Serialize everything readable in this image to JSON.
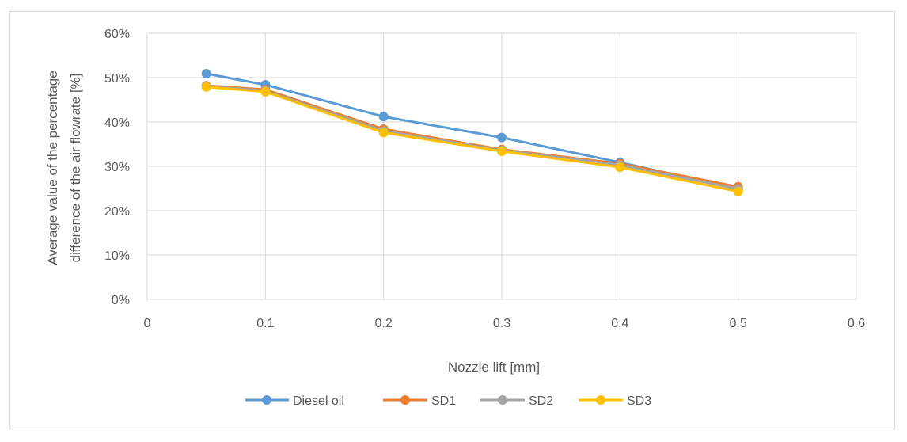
{
  "chart_data": {
    "type": "line",
    "title": "",
    "xlabel": "Nozzle lift [mm]",
    "ylabel_lines": [
      "Average value of the percentage",
      "difference of the air flowrate [%]"
    ],
    "xlim": [
      0,
      0.6
    ],
    "ylim": [
      0,
      0.6
    ],
    "x_ticks": [
      0,
      0.1,
      0.2,
      0.3,
      0.4,
      0.5,
      0.6
    ],
    "x_tick_labels": [
      "0",
      "0.1",
      "0.2",
      "0.3",
      "0.4",
      "0.5",
      "0.6"
    ],
    "y_ticks": [
      0,
      0.1,
      0.2,
      0.3,
      0.4,
      0.5,
      0.6
    ],
    "y_tick_labels": [
      "0%",
      "10%",
      "20%",
      "30%",
      "40%",
      "50%",
      "60%"
    ],
    "grid": true,
    "legend_position": "bottom",
    "x": [
      0.05,
      0.1,
      0.2,
      0.3,
      0.4,
      0.5
    ],
    "series": [
      {
        "name": "Diesel oil",
        "color": "#5b9bd5",
        "values": [
          0.509,
          0.484,
          0.412,
          0.365,
          0.309,
          0.249
        ]
      },
      {
        "name": "SD1",
        "color": "#ed7d31",
        "values": [
          0.482,
          0.473,
          0.384,
          0.338,
          0.306,
          0.254
        ]
      },
      {
        "name": "SD2",
        "color": "#a5a5a5",
        "values": [
          0.481,
          0.47,
          0.38,
          0.336,
          0.303,
          0.249
        ]
      },
      {
        "name": "SD3",
        "color": "#ffc000",
        "values": [
          0.479,
          0.468,
          0.376,
          0.334,
          0.298,
          0.243
        ]
      }
    ]
  }
}
